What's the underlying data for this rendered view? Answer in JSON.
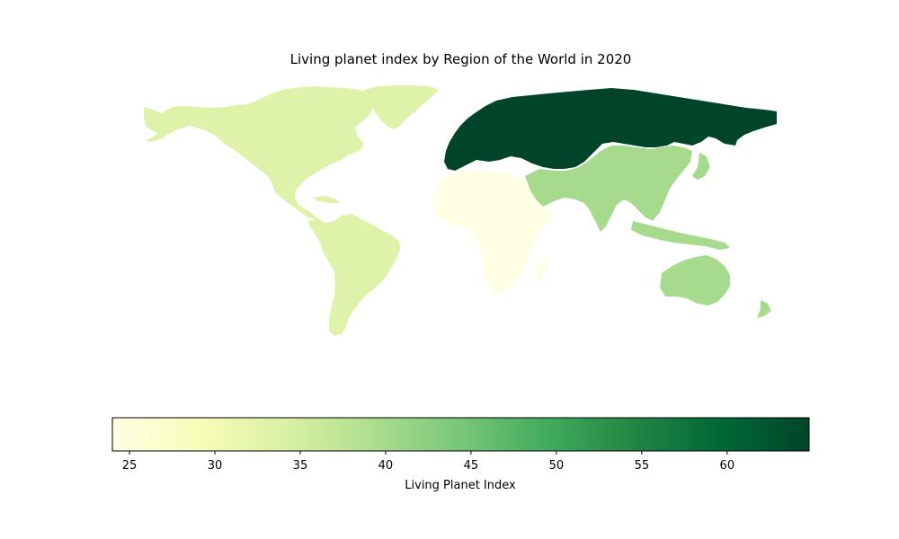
{
  "chart_data": {
    "type": "choropleth",
    "title": "Living planet index by Region of the World in 2020",
    "colorbar": {
      "label": "Living Planet Index",
      "min": 24,
      "max": 64.8,
      "ticks": [
        25,
        30,
        35,
        40,
        45,
        50,
        55,
        60
      ],
      "colormap": "YlGn",
      "orientation": "horizontal"
    },
    "regions": [
      {
        "name": "North America",
        "value": 33,
        "color": "#dff2a9"
      },
      {
        "name": "Latin America and the Caribbean",
        "value": 33,
        "color": "#dff2a9"
      },
      {
        "name": "Africa",
        "value": 25,
        "color": "#ffffe5"
      },
      {
        "name": "Europe and Central Asia",
        "value": 64,
        "color": "#00452a"
      },
      {
        "name": "Asia and the Pacific",
        "value": 40,
        "color": "#a6da8c"
      }
    ]
  }
}
